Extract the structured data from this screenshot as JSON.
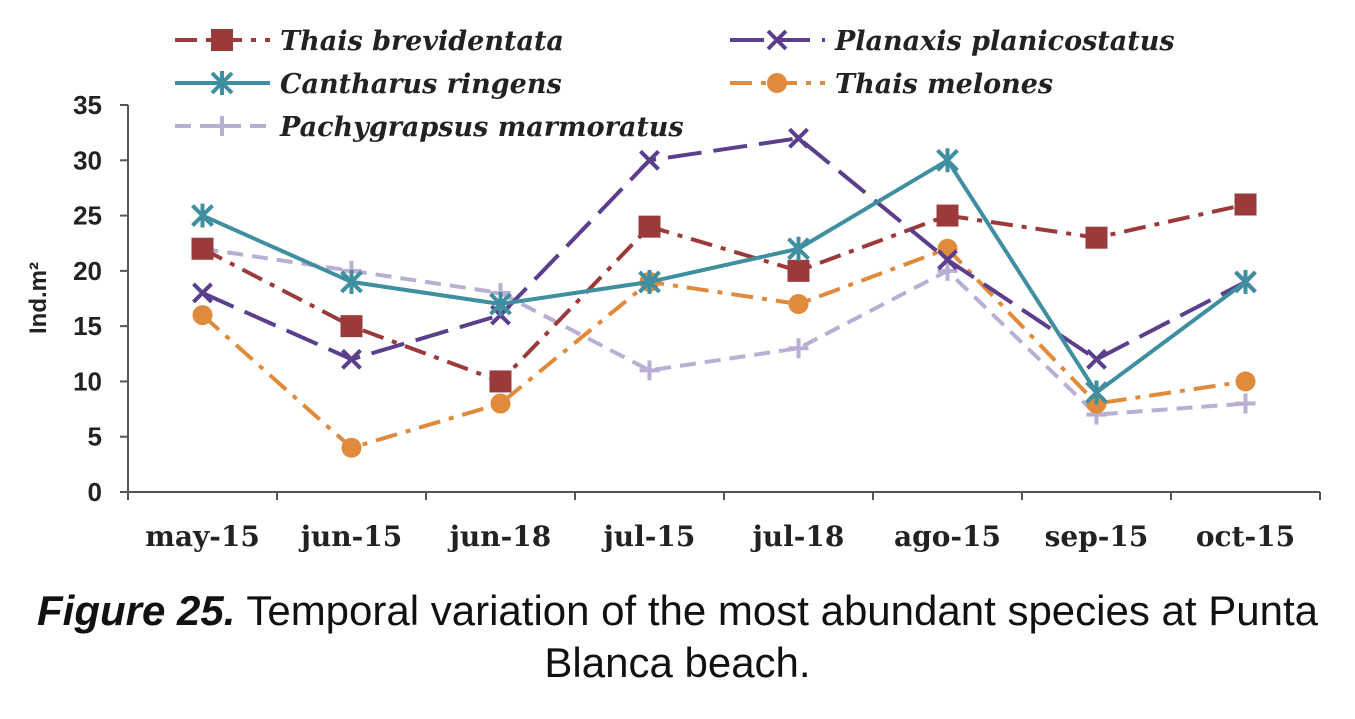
{
  "chart_data": {
    "type": "line",
    "categories": [
      "may-15",
      "jun-15",
      "jun-18",
      "jul-15",
      "jul-18",
      "ago-15",
      "sep-15",
      "oct-15"
    ],
    "ylabel": "Ind.m²",
    "ylim": [
      0,
      35
    ],
    "yticks": [
      0,
      5,
      10,
      15,
      20,
      25,
      30,
      35
    ],
    "grid": false,
    "legend_position": "top",
    "series": [
      {
        "name": "Thais brevidentata",
        "values": [
          22,
          15,
          10,
          24,
          20,
          25,
          23,
          26
        ],
        "color": "#9b3a3a",
        "marker": "square",
        "dash": "dashdot"
      },
      {
        "name": "Planaxis planicostatus",
        "values": [
          18,
          12,
          16,
          30,
          32,
          21,
          12,
          19
        ],
        "color": "#5b3f8c",
        "marker": "x",
        "dash": "longdash"
      },
      {
        "name": "Cantharus ringens",
        "values": [
          25,
          19,
          17,
          19,
          22,
          30,
          9,
          19
        ],
        "color": "#3f8fa0",
        "marker": "asterisk",
        "dash": "solid"
      },
      {
        "name": "Thais melones",
        "values": [
          16,
          4,
          8,
          19,
          17,
          22,
          8,
          10
        ],
        "color": "#e08a3c",
        "marker": "circle",
        "dash": "dashdot"
      },
      {
        "name": "Pachygrapsus marmoratus",
        "values": [
          22,
          20,
          18,
          11,
          13,
          20,
          7,
          8
        ],
        "color": "#b9aed3",
        "marker": "plus",
        "dash": "dash"
      }
    ]
  },
  "caption": {
    "figure_label": "Figure 25.",
    "text": " Temporal variation of the most abundant species at Punta Blanca beach."
  }
}
